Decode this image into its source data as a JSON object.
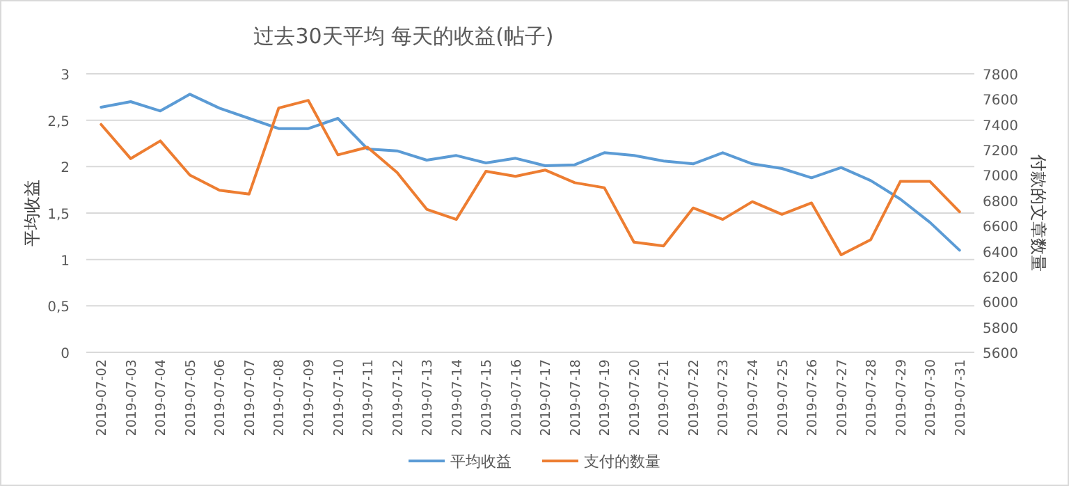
{
  "chart_data": {
    "type": "line",
    "title": "过去30天平均 每天的收益(帖子)",
    "ylabel": "平均收益",
    "y2label": "付款的文章数量",
    "categories": [
      "2019-07-02",
      "2019-07-03",
      "2019-07-04",
      "2019-07-05",
      "2019-07-06",
      "2019-07-07",
      "2019-07-08",
      "2019-07-09",
      "2019-07-10",
      "2019-07-11",
      "2019-07-12",
      "2019-07-13",
      "2019-07-14",
      "2019-07-15",
      "2019-07-16",
      "2019-07-17",
      "2019-07-18",
      "2019-07-19",
      "2019-07-20",
      "2019-07-21",
      "2019-07-22",
      "2019-07-23",
      "2019-07-24",
      "2019-07-25",
      "2019-07-26",
      "2019-07-27",
      "2019-07-28",
      "2019-07-29",
      "2019-07-30",
      "2019-07-31"
    ],
    "series": [
      {
        "name": "平均收益",
        "color": "#5b9bd5",
        "values": [
          2.64,
          2.7,
          2.6,
          2.78,
          2.63,
          2.52,
          2.41,
          2.41,
          2.52,
          2.19,
          2.17,
          2.07,
          2.12,
          2.04,
          2.09,
          2.01,
          2.02,
          2.15,
          2.12,
          2.06,
          2.03,
          2.15,
          2.03,
          1.98,
          1.88,
          1.99,
          1.85,
          1.65,
          1.4,
          1.1
        ]
      },
      {
        "name": "支付的数量",
        "color": "#ed7d31",
        "axis": "y2",
        "values": [
          7400,
          7130,
          7270,
          7000,
          6880,
          6850,
          7530,
          7590,
          7160,
          7220,
          7020,
          6730,
          6650,
          7030,
          6990,
          7040,
          6940,
          6900,
          6470,
          6440,
          6740,
          6650,
          6790,
          6690,
          6780,
          6370,
          6490,
          6950,
          6950,
          6710
        ]
      }
    ],
    "ylim": [
      0,
      3
    ],
    "yticks": [
      0,
      {
        "value": 0.5,
        "label": "0,5"
      },
      1,
      {
        "value": 1.5,
        "label": "1,5"
      },
      2,
      {
        "value": 2.5,
        "label": "2,5"
      },
      3
    ],
    "y2lim": [
      5600,
      7800
    ],
    "y2ticks": [
      5600,
      5800,
      6000,
      6200,
      6400,
      6600,
      6800,
      7000,
      7200,
      7400,
      7600,
      7800
    ],
    "grid": "y",
    "legend": "bottom"
  }
}
